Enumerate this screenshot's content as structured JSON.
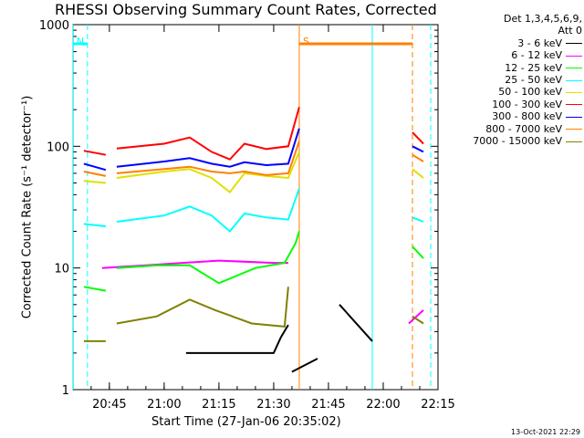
{
  "chart_data": {
    "type": "line",
    "title": "RHESSI Observing Summary Count Rates, Corrected",
    "xlabel": "Start Time (27-Jan-06 20:35:02)",
    "ylabel": "Corrected Count Rate (s⁻¹ detector⁻¹)",
    "timestamp": "13-Oct-2021 22:29",
    "yscale": "log",
    "ylim": [
      1,
      1000
    ],
    "xlim": [
      "20:35:02",
      "22:15"
    ],
    "x_ticks": [
      "20:45",
      "21:00",
      "21:15",
      "21:30",
      "21:45",
      "22:00",
      "22:15"
    ],
    "y_ticks": [
      "1",
      "10",
      "100",
      "1000"
    ],
    "legend_header": [
      "Det 1,3,4,5,6,9,",
      "Att 0"
    ],
    "legend_position": "top-right outside plot",
    "flags": [
      {
        "label": "N",
        "color": "#00ffff",
        "from": "20:35",
        "to": "20:39"
      },
      {
        "label": "S",
        "color": "#ff8000",
        "from": "21:37",
        "to": "22:08"
      }
    ],
    "vlines": [
      {
        "time": "20:35",
        "color": "#00ffff",
        "style": "solid"
      },
      {
        "time": "20:39",
        "color": "#00ffff",
        "style": "dashed"
      },
      {
        "time": "21:37",
        "color": "#ff8000",
        "style": "solid"
      },
      {
        "time": "21:57",
        "color": "#00ffff",
        "style": "solid"
      },
      {
        "time": "22:08",
        "color": "#ff8000",
        "style": "dashed"
      },
      {
        "time": "22:13",
        "color": "#00ffff",
        "style": "dashed"
      }
    ],
    "series": [
      {
        "name": "3 - 6 keV",
        "color": "#000000",
        "segments": [
          [
            [
              "21:35",
              1.4
            ],
            [
              "21:42",
              1.8
            ]
          ],
          [
            [
              "21:48",
              5
            ],
            [
              "21:57",
              2.5
            ]
          ],
          [
            [
              "21:06",
              2
            ],
            [
              "21:30",
              2
            ],
            [
              "21:32",
              2.7
            ],
            [
              "21:34",
              3.4
            ]
          ]
        ]
      },
      {
        "name": "6 - 12 keV",
        "color": "#ff00ff",
        "segments": [
          [
            [
              "20:43",
              10
            ],
            [
              "20:55",
              10.5
            ],
            [
              "21:05",
              11
            ],
            [
              "21:15",
              11.5
            ],
            [
              "21:30",
              11
            ],
            [
              "21:34",
              11
            ]
          ],
          [
            [
              "22:07",
              3.5
            ],
            [
              "22:11",
              4.5
            ]
          ]
        ]
      },
      {
        "name": "12 - 25 keV",
        "color": "#00ff00",
        "segments": [
          [
            [
              "20:38",
              7
            ],
            [
              "20:44",
              6.5
            ]
          ],
          [
            [
              "20:47",
              10
            ],
            [
              "20:58",
              10.5
            ],
            [
              "21:07",
              10.5
            ],
            [
              "21:15",
              7.5
            ],
            [
              "21:25",
              10
            ],
            [
              "21:33",
              11
            ],
            [
              "21:36",
              16
            ],
            [
              "21:37",
              20
            ]
          ],
          [
            [
              "22:08",
              15
            ],
            [
              "22:11",
              12
            ]
          ]
        ]
      },
      {
        "name": "25 - 50 keV",
        "color": "#00ffff",
        "segments": [
          [
            [
              "20:38",
              23
            ],
            [
              "20:44",
              22
            ]
          ],
          [
            [
              "20:47",
              24
            ],
            [
              "21:00",
              27
            ],
            [
              "21:07",
              32
            ],
            [
              "21:13",
              27
            ],
            [
              "21:18",
              20
            ],
            [
              "21:22",
              28
            ],
            [
              "21:28",
              26
            ],
            [
              "21:34",
              25
            ],
            [
              "21:37",
              45
            ]
          ],
          [
            [
              "22:08",
              26
            ],
            [
              "22:11",
              24
            ]
          ]
        ]
      },
      {
        "name": "50 - 100 keV",
        "color": "#e0e000",
        "segments": [
          [
            [
              "20:38",
              52
            ],
            [
              "20:44",
              50
            ]
          ],
          [
            [
              "20:47",
              55
            ],
            [
              "21:00",
              62
            ],
            [
              "21:07",
              65
            ],
            [
              "21:13",
              55
            ],
            [
              "21:18",
              42
            ],
            [
              "21:22",
              60
            ],
            [
              "21:28",
              57
            ],
            [
              "21:34",
              55
            ],
            [
              "21:37",
              90
            ]
          ],
          [
            [
              "22:08",
              65
            ],
            [
              "22:11",
              55
            ]
          ]
        ]
      },
      {
        "name": "100 - 300 keV",
        "color": "#ff0000",
        "segments": [
          [
            [
              "20:38",
              92
            ],
            [
              "20:44",
              85
            ]
          ],
          [
            [
              "20:47",
              96
            ],
            [
              "21:00",
              105
            ],
            [
              "21:07",
              118
            ],
            [
              "21:13",
              90
            ],
            [
              "21:18",
              78
            ],
            [
              "21:22",
              105
            ],
            [
              "21:28",
              95
            ],
            [
              "21:34",
              100
            ],
            [
              "21:37",
              210
            ]
          ],
          [
            [
              "22:08",
              130
            ],
            [
              "22:11",
              105
            ]
          ]
        ]
      },
      {
        "name": "300 - 800 keV",
        "color": "#0000ff",
        "segments": [
          [
            [
              "20:38",
              72
            ],
            [
              "20:44",
              64
            ]
          ],
          [
            [
              "20:47",
              68
            ],
            [
              "21:00",
              75
            ],
            [
              "21:07",
              80
            ],
            [
              "21:13",
              72
            ],
            [
              "21:18",
              68
            ],
            [
              "21:22",
              74
            ],
            [
              "21:28",
              70
            ],
            [
              "21:34",
              72
            ],
            [
              "21:37",
              140
            ]
          ],
          [
            [
              "22:08",
              100
            ],
            [
              "22:11",
              90
            ]
          ]
        ]
      },
      {
        "name": "800 - 7000 keV",
        "color": "#ff8000",
        "segments": [
          [
            [
              "20:38",
              62
            ],
            [
              "20:44",
              57
            ]
          ],
          [
            [
              "20:47",
              60
            ],
            [
              "21:00",
              65
            ],
            [
              "21:07",
              68
            ],
            [
              "21:13",
              62
            ],
            [
              "21:18",
              60
            ],
            [
              "21:22",
              62
            ],
            [
              "21:28",
              58
            ],
            [
              "21:34",
              60
            ],
            [
              "21:37",
              110
            ]
          ],
          [
            [
              "22:08",
              85
            ],
            [
              "22:11",
              75
            ]
          ]
        ]
      },
      {
        "name": "7000 - 15000 keV",
        "color": "#808000",
        "segments": [
          [
            [
              "20:38",
              2.5
            ],
            [
              "20:44",
              2.5
            ]
          ],
          [
            [
              "20:47",
              3.5
            ],
            [
              "20:58",
              4
            ],
            [
              "21:07",
              5.5
            ],
            [
              "21:14",
              4.5
            ],
            [
              "21:24",
              3.5
            ],
            [
              "21:33",
              3.3
            ],
            [
              "21:34",
              7
            ]
          ],
          [
            [
              "22:08",
              4
            ],
            [
              "22:11",
              3.5
            ]
          ]
        ]
      }
    ]
  }
}
